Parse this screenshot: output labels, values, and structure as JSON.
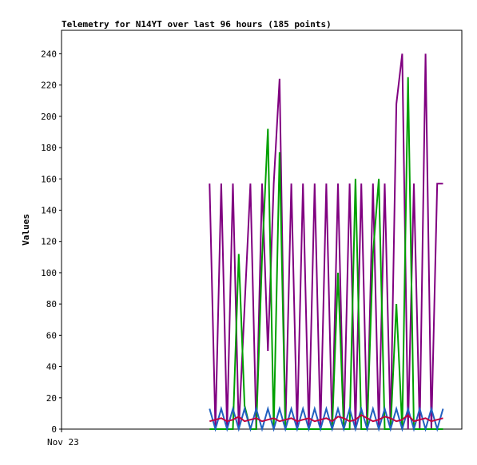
{
  "chart_data": {
    "type": "line",
    "title": "Telemetry for N14YT over last 96 hours (185 points)",
    "ylabel": "Values",
    "xlim": [
      0,
      96
    ],
    "xticks": [
      {
        "value": 0,
        "label": "Nov 23"
      }
    ],
    "ylim": [
      0,
      255
    ],
    "yticks": [
      0,
      20,
      40,
      60,
      80,
      100,
      120,
      140,
      160,
      180,
      200,
      220,
      240
    ],
    "x": [
      35.5,
      36.9,
      38.3,
      39.7,
      41.1,
      42.5,
      43.9,
      45.3,
      46.7,
      48.1,
      49.5,
      50.9,
      52.3,
      53.7,
      55.1,
      56.5,
      57.9,
      59.3,
      60.7,
      62.1,
      63.5,
      64.9,
      66.3,
      67.7,
      69.1,
      70.5,
      71.9,
      73.3,
      74.7,
      76.1,
      77.5,
      78.9,
      80.3,
      81.7,
      83.1,
      84.5,
      85.9,
      87.3,
      88.7,
      90.1,
      91.5
    ],
    "series": [
      {
        "color": "#800080",
        "values": [
          157,
          0,
          157,
          0,
          157,
          0,
          78,
          157,
          0,
          157,
          50,
          157,
          224,
          0,
          157,
          0,
          157,
          0,
          157,
          0,
          157,
          0,
          157,
          0,
          157,
          0,
          157,
          0,
          157,
          0,
          157,
          0,
          208,
          240,
          0,
          157,
          0,
          240,
          0,
          157,
          157
        ]
      },
      {
        "color": "#00a000",
        "values": [
          0,
          0,
          0,
          0,
          0,
          112,
          15,
          0,
          0,
          110,
          192,
          0,
          177,
          0,
          0,
          0,
          0,
          0,
          0,
          0,
          0,
          0,
          100,
          0,
          0,
          160,
          0,
          0,
          112,
          160,
          0,
          0,
          80,
          0,
          225,
          0,
          0,
          0,
          0,
          0,
          0
        ]
      },
      {
        "color": "#2060c0",
        "values": [
          13,
          0,
          13,
          0,
          13,
          0,
          13,
          0,
          13,
          0,
          13,
          0,
          13,
          0,
          13,
          0,
          13,
          0,
          13,
          0,
          13,
          0,
          13,
          0,
          13,
          0,
          13,
          0,
          13,
          0,
          13,
          0,
          13,
          0,
          13,
          0,
          13,
          0,
          13,
          0,
          13
        ]
      },
      {
        "color": "#c00040",
        "values": [
          5,
          6,
          7,
          5,
          6,
          8,
          5,
          6,
          7,
          5,
          6,
          7,
          5,
          6,
          7,
          5,
          6,
          7,
          5,
          6,
          7,
          5,
          8,
          7,
          5,
          6,
          9,
          7,
          5,
          6,
          8,
          7,
          5,
          6,
          9,
          5,
          6,
          7,
          5,
          6,
          7
        ]
      }
    ]
  }
}
